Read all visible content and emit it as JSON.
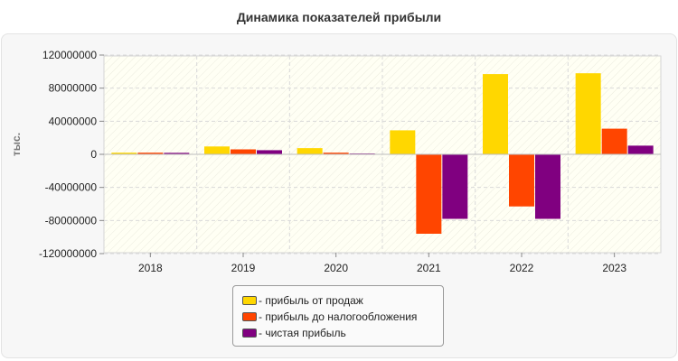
{
  "chart_data": {
    "type": "bar",
    "title": "Динамика показателей прибыли",
    "ylabel": "тыс.",
    "xlabel": "",
    "categories": [
      "2018",
      "2019",
      "2020",
      "2021",
      "2022",
      "2023"
    ],
    "ylim": [
      -120000000,
      120000000
    ],
    "yticks": [
      120000000,
      80000000,
      40000000,
      0,
      -40000000,
      -80000000,
      -120000000
    ],
    "ytick_labels": [
      "120000000",
      "80000000",
      "40000000",
      "0",
      "-40000000",
      "-80000000",
      "-120000000"
    ],
    "grid": true,
    "legend_position": "bottom",
    "series": [
      {
        "name": "- прибыль от продаж",
        "color": "#FFD700",
        "values": [
          2000000,
          9500000,
          7500000,
          29000000,
          97000000,
          98000000
        ]
      },
      {
        "name": "- прибыль до налогообложения",
        "color": "#FF4500",
        "values": [
          2000000,
          6000000,
          2000000,
          -96000000,
          -63000000,
          31000000
        ]
      },
      {
        "name": "- чистая прибыль",
        "color": "#800080",
        "values": [
          1800000,
          5000000,
          1000000,
          -78000000,
          -78000000,
          10500000
        ]
      }
    ]
  }
}
